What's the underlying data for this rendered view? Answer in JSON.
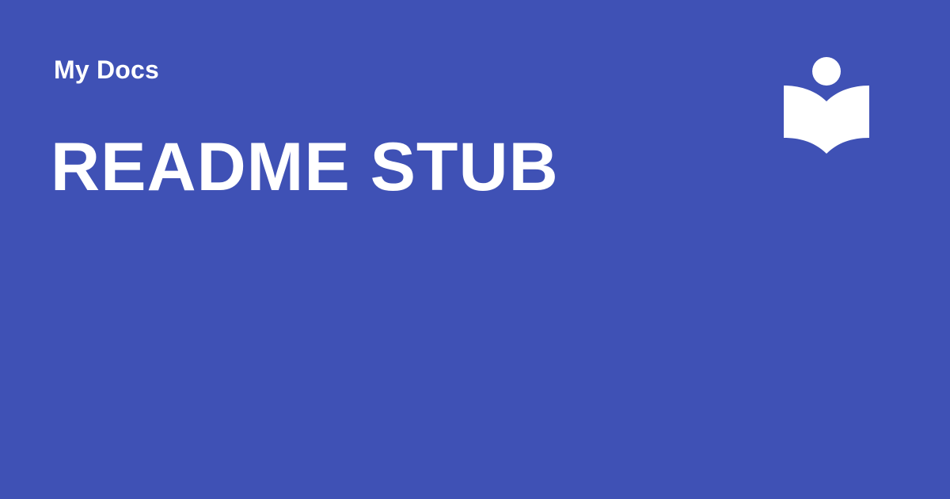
{
  "card": {
    "background_color": "#3f51b5",
    "text_color": "#ffffff",
    "site_name": "My Docs",
    "page_title": "README STUB",
    "logo_icon": "reading-book-icon"
  }
}
